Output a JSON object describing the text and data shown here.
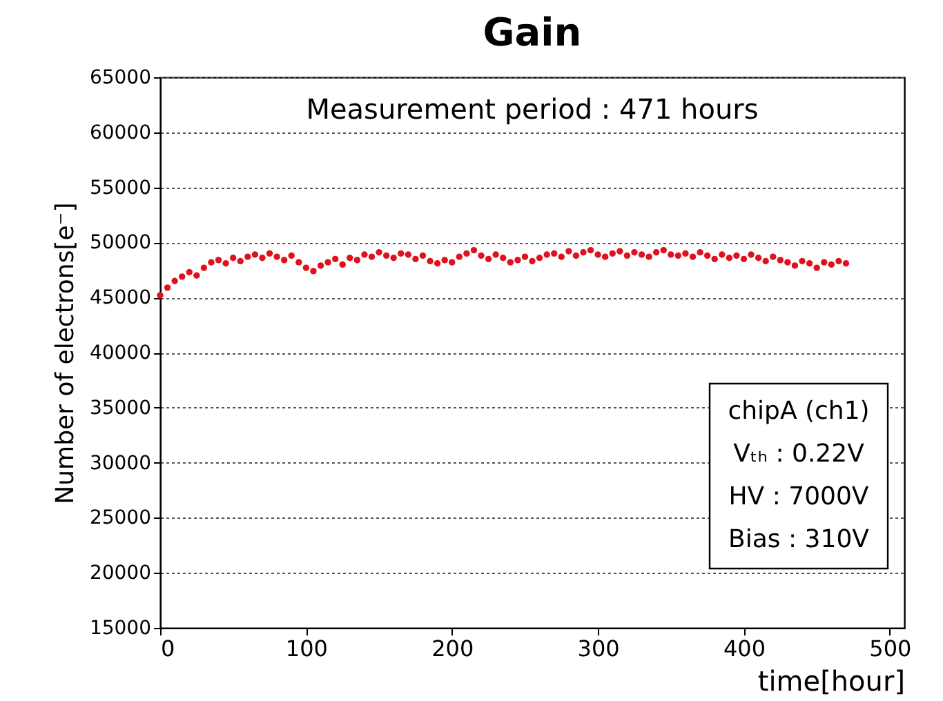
{
  "chart_data": {
    "type": "scatter",
    "title": "Gain",
    "xlabel": "time[hour]",
    "ylabel": "Number of electrons[e⁻]",
    "annotations": [
      "Measurement period : 471 hours",
      "chipA (ch1)",
      "Vₜₕ : 0.22V",
      "HV : 7000V",
      "Bias : 310V"
    ],
    "x": [
      0,
      5,
      10,
      15,
      20,
      25,
      30,
      35,
      40,
      45,
      50,
      55,
      60,
      65,
      70,
      75,
      80,
      85,
      90,
      95,
      100,
      105,
      110,
      115,
      120,
      125,
      130,
      135,
      140,
      145,
      150,
      155,
      160,
      165,
      170,
      175,
      180,
      185,
      190,
      195,
      200,
      205,
      210,
      215,
      220,
      225,
      230,
      235,
      240,
      245,
      250,
      255,
      260,
      265,
      270,
      275,
      280,
      285,
      290,
      295,
      300,
      305,
      310,
      315,
      320,
      325,
      330,
      335,
      340,
      345,
      350,
      355,
      360,
      365,
      370,
      375,
      380,
      385,
      390,
      395,
      400,
      405,
      410,
      415,
      420,
      425,
      430,
      435,
      440,
      445,
      450,
      455,
      460,
      465,
      470
    ],
    "series": [
      {
        "color": "#e0101e",
        "values": [
          45200,
          45900,
          46500,
          46900,
          47300,
          47000,
          47700,
          48200,
          48400,
          48100,
          48600,
          48300,
          48700,
          48900,
          48600,
          49000,
          48700,
          48400,
          48800,
          48200,
          47700,
          47400,
          47900,
          48200,
          48500,
          48000,
          48600,
          48400,
          48900,
          48700,
          49100,
          48800,
          48600,
          49000,
          48900,
          48500,
          48800,
          48300,
          48100,
          48400,
          48200,
          48700,
          49000,
          49300,
          48800,
          48500,
          48900,
          48600,
          48200,
          48400,
          48700,
          48300,
          48600,
          48900,
          49000,
          48700,
          49200,
          48800,
          49100,
          49300,
          48900,
          48700,
          49000,
          49200,
          48800,
          49100,
          48900,
          48700,
          49100,
          49300,
          48900,
          48800,
          49000,
          48700,
          49100,
          48800,
          48500,
          48900,
          48600,
          48800,
          48500,
          48900,
          48600,
          48300,
          48700,
          48400,
          48200,
          47900,
          48300,
          48100,
          47700,
          48200,
          48000,
          48300,
          48100
        ]
      }
    ],
    "xlim": [
      0,
      510
    ],
    "xticks": [
      0,
      100,
      200,
      300,
      400,
      500
    ],
    "ylim": [
      15000,
      65000
    ],
    "yticks": [
      15000,
      20000,
      25000,
      30000,
      35000,
      40000,
      45000,
      50000,
      55000,
      60000,
      65000
    ],
    "grid": "y",
    "marker": "circle",
    "legend": false
  }
}
